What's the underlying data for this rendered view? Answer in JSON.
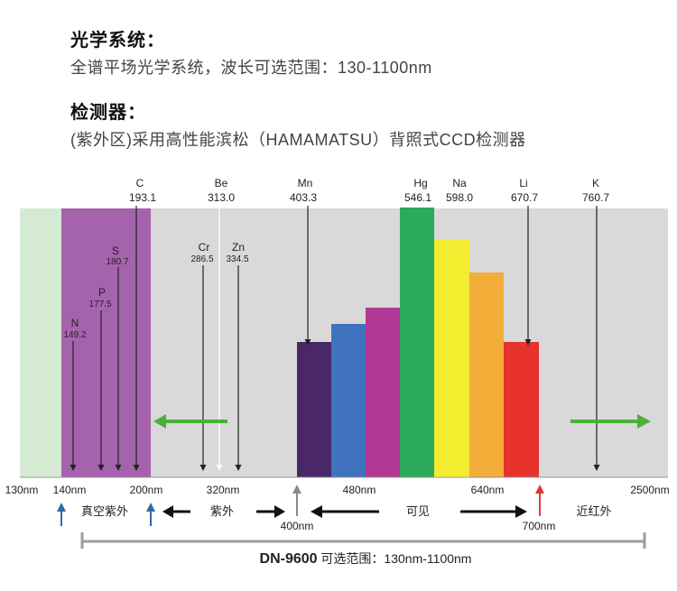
{
  "optics": {
    "title": "光学系统：",
    "desc": "全谱平场光学系统，波长可选范围：130-1100nm"
  },
  "detector": {
    "title": "检测器：",
    "desc": "(紫外区)采用高性能滨松（HAMAMATSU）背照式CCD检测器"
  },
  "spectrum": {
    "colors": {
      "panel_gray": "#d9d9d9",
      "light_green": "#d5ead2",
      "purple": "#a563ad",
      "line": "#222222",
      "white_line": "#ffffff",
      "arrow_green": "#4caf3c",
      "bars": [
        "#4a2769",
        "#3f73c0",
        "#b23996",
        "#2bab59",
        "#f3ec2f",
        "#f3ae3a",
        "#e8322e"
      ],
      "axis_gray": "#999999",
      "range_gray": "#9e9e9e",
      "up_blue": "#2e6aa6",
      "up_gray": "#8a8a8a",
      "up_red": "#e23a2a"
    },
    "bar_levels": [
      0.5,
      0.57,
      0.63,
      1.0,
      0.88,
      0.76,
      0.5
    ],
    "top_elements": [
      {
        "symbol": "C",
        "value": "193.1"
      },
      {
        "symbol": "Be",
        "value": "313.0"
      },
      {
        "symbol": "Mn",
        "value": "403.3"
      },
      {
        "symbol": "Hg",
        "value": "546.1"
      },
      {
        "symbol": "Na",
        "value": "598.0"
      },
      {
        "symbol": "Li",
        "value": "670.7"
      },
      {
        "symbol": "K",
        "value": "760.7"
      }
    ],
    "inner_elements": [
      {
        "symbol": "S",
        "value": "180.7"
      },
      {
        "symbol": "P",
        "value": "177.5"
      },
      {
        "symbol": "N",
        "value": "149.2"
      },
      {
        "symbol": "Cr",
        "value": "286.5"
      },
      {
        "symbol": "Zn",
        "value": "334.5"
      }
    ],
    "tick_labels": [
      "130nm",
      "140nm",
      "200nm",
      "320nm",
      "480nm",
      "640nm",
      "2500nm",
      "400nm",
      "700nm"
    ],
    "region_labels": {
      "vacuum_uv": "真空紫外",
      "uv": "紫外",
      "visible": "可见",
      "near_ir": "近红外"
    },
    "range": {
      "model": "DN-9600",
      "text": " 可选范围：130nm-1100nm"
    }
  }
}
